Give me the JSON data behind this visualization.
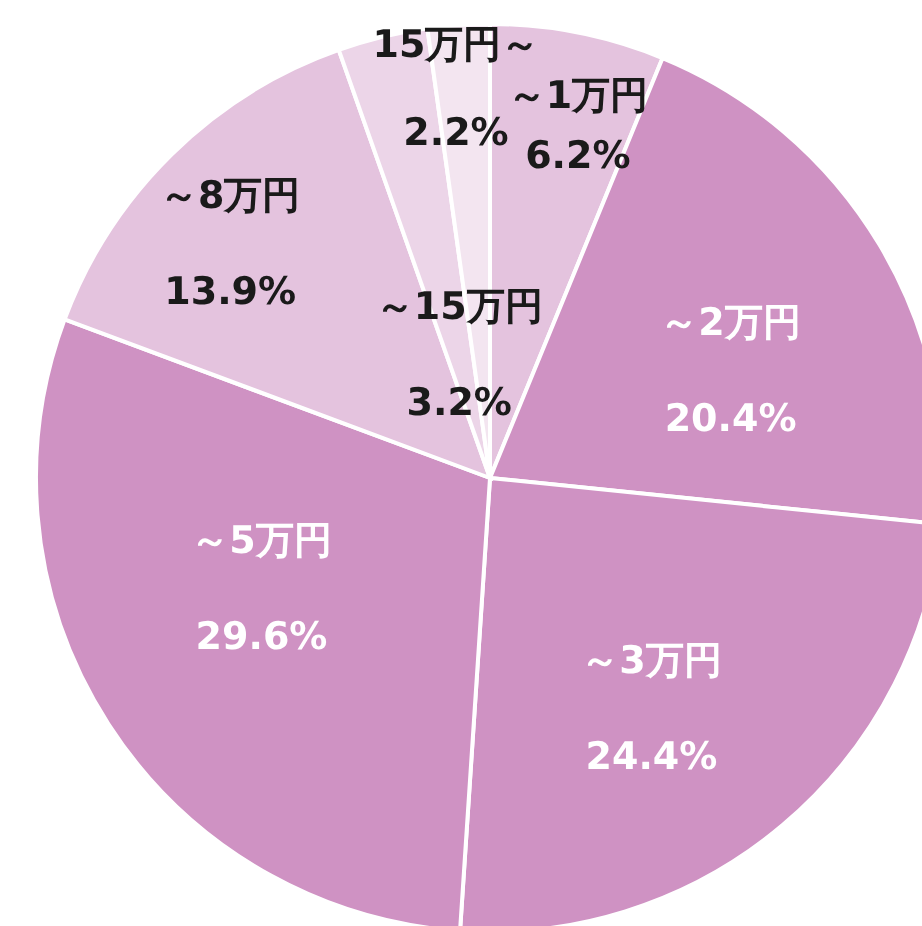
{
  "chart_data": {
    "type": "pie",
    "categories": [
      "～1万円",
      "～2万円",
      "～3万円",
      "～5万円",
      "～8万円",
      "～15万円",
      "15万円～"
    ],
    "values": [
      6.2,
      20.4,
      24.4,
      29.6,
      13.9,
      3.2,
      2.2
    ],
    "colors": [
      "#e4c3de",
      "#cf92c3",
      "#cf92c3",
      "#cf92c3",
      "#e4c3de",
      "#ecd5e8",
      "#f3e5f0"
    ],
    "value_labels": [
      "6.2%",
      "20.4%",
      "24.4%",
      "29.6%",
      "13.9%",
      "3.2%",
      "2.2%"
    ]
  }
}
